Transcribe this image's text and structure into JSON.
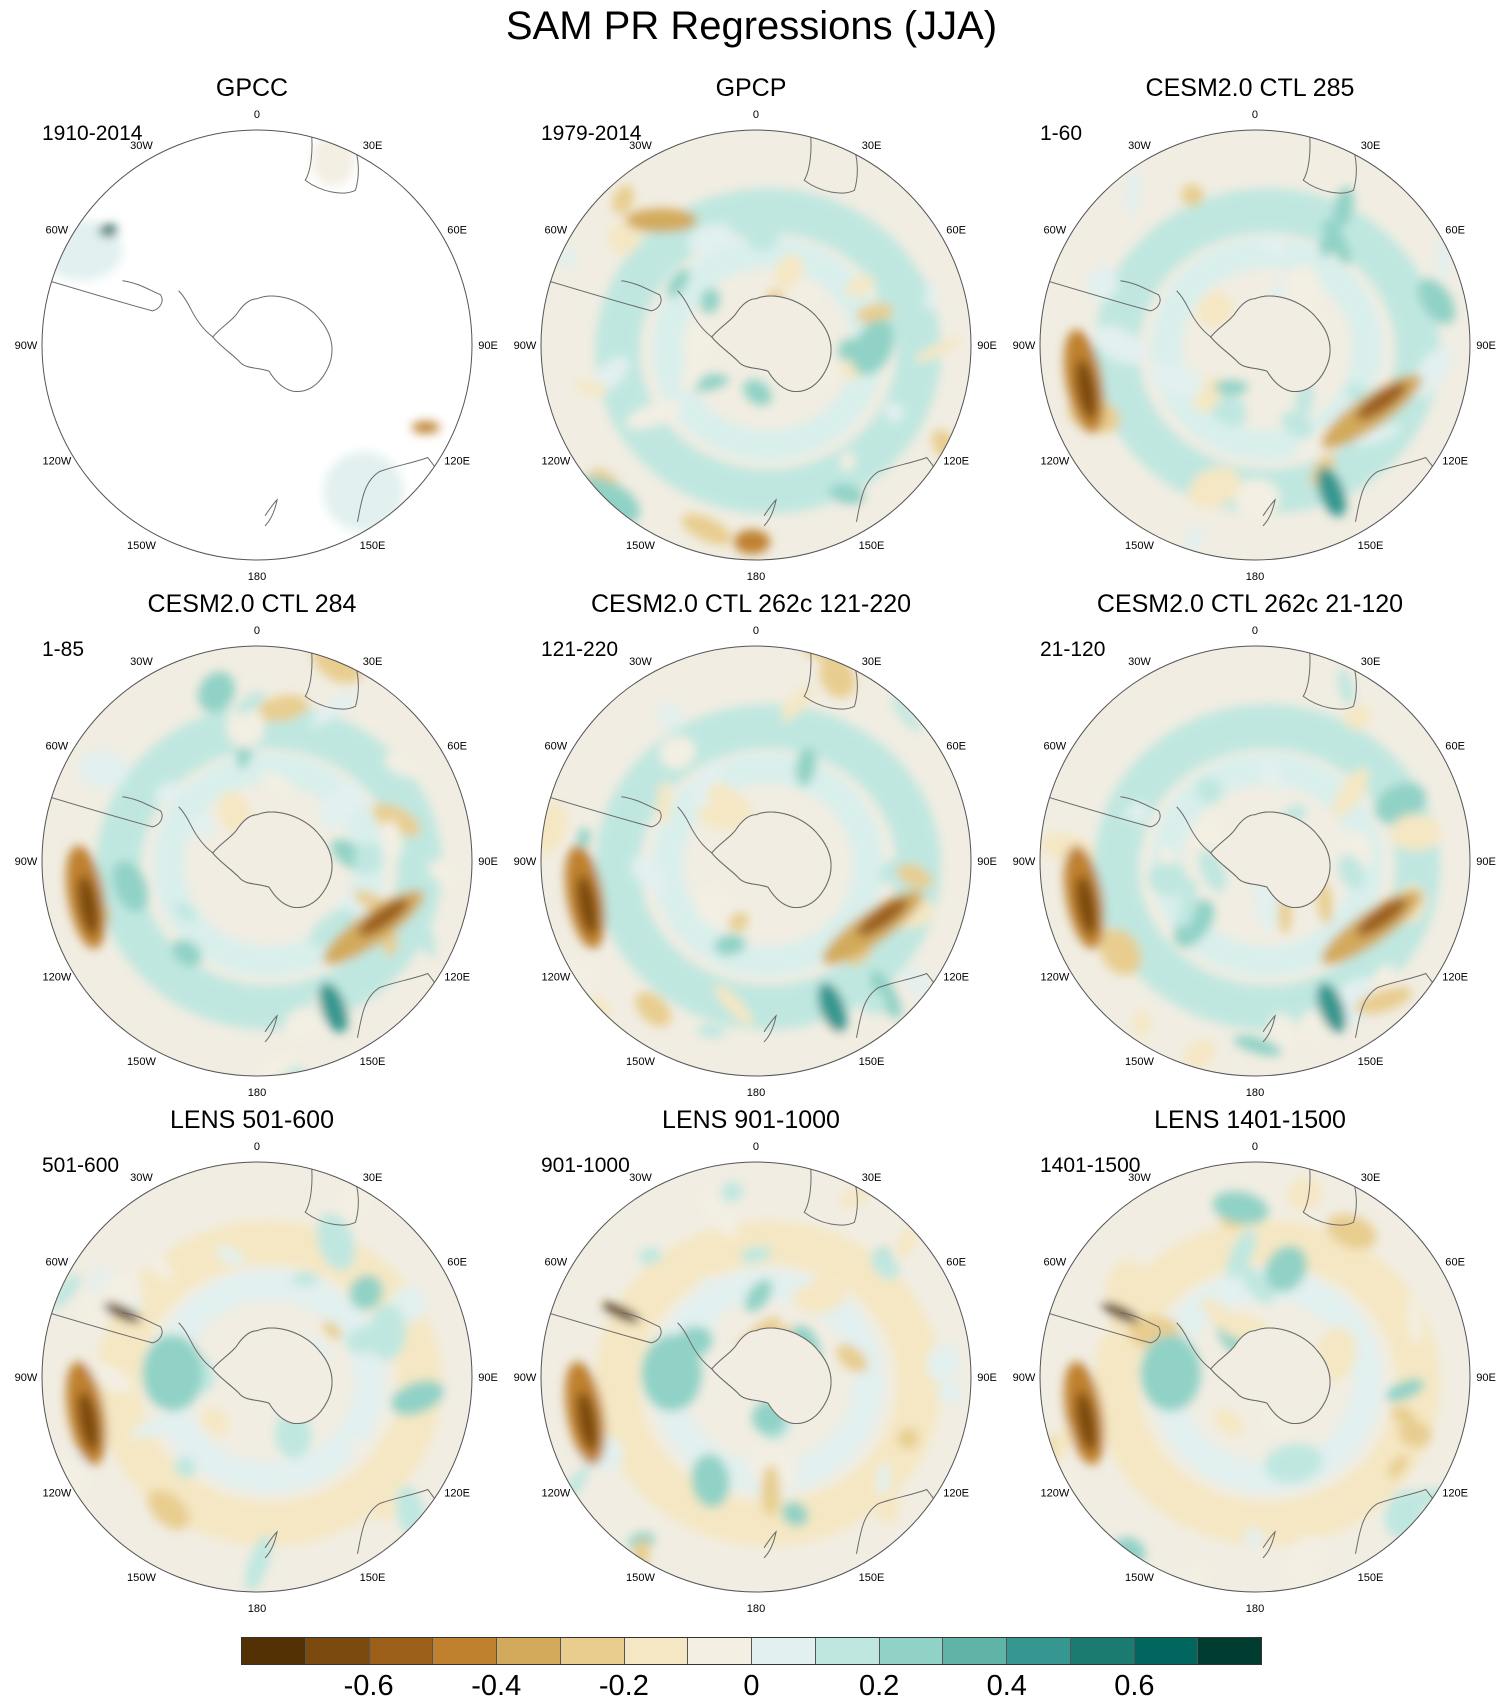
{
  "title": "SAM PR Regressions (JJA)",
  "panels": [
    {
      "title": "GPCC",
      "period": "1910-2014",
      "style": "gpcc"
    },
    {
      "title": "GPCP",
      "period": "1979-2014",
      "style": "obs"
    },
    {
      "title": "CESM2.0 CTL 285",
      "period": "1-60",
      "style": "model"
    },
    {
      "title": "CESM2.0 CTL 284",
      "period": "1-85",
      "style": "model"
    },
    {
      "title": "CESM2.0 CTL 262c 121-220",
      "period": "121-220",
      "style": "model"
    },
    {
      "title": "CESM2.0 CTL 262c 21-120",
      "period": "21-120",
      "style": "model"
    },
    {
      "title": "LENS 501-600",
      "period": "501-600",
      "style": "lens"
    },
    {
      "title": "LENS 901-1000",
      "period": "901-1000",
      "style": "lens"
    },
    {
      "title": "LENS 1401-1500",
      "period": "1401-1500",
      "style": "lens"
    }
  ],
  "longitude_labels": [
    "0",
    "30E",
    "60E",
    "90E",
    "120E",
    "150E",
    "180",
    "150W",
    "120W",
    "90W",
    "60W",
    "30W"
  ],
  "colorbar": {
    "colors": [
      "#543005",
      "#7a4a0e",
      "#9c5f1a",
      "#bf812d",
      "#d3aa5c",
      "#e8cd8f",
      "#f5e7c3",
      "#f3efe3",
      "#e2f0ef",
      "#bfe7e0",
      "#91d2c6",
      "#5fb3a7",
      "#35978f",
      "#1b7b70",
      "#01665e",
      "#003c30"
    ],
    "tick_labels": [
      "-0.6",
      "-0.4",
      "-0.2",
      "0",
      "0.2",
      "0.4",
      "0.6"
    ]
  }
}
